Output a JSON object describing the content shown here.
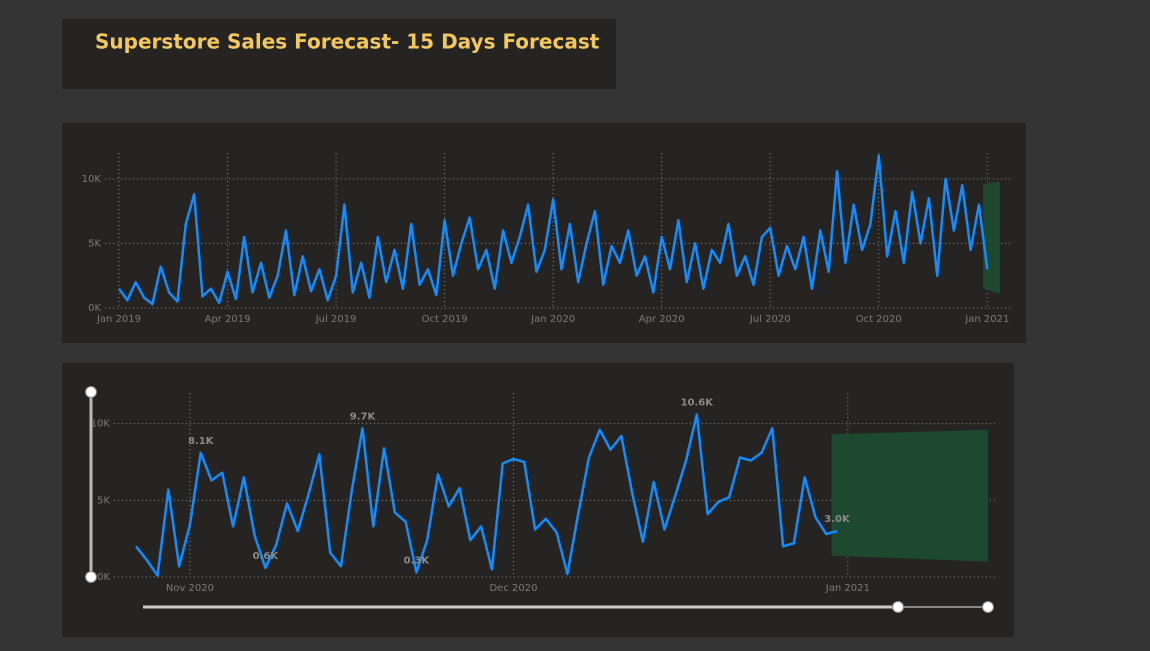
{
  "header": {
    "title": "Superstore Sales Forecast- 15 Days Forecast"
  },
  "chart_data": [
    {
      "type": "line",
      "color": "#118dff",
      "values": [
        1500,
        600,
        2000,
        800,
        300,
        3200,
        1200,
        500,
        6500,
        8800,
        900,
        1500,
        400,
        2800,
        700,
        5500,
        1200,
        3500,
        800,
        2500,
        6000,
        1000,
        4000,
        1300,
        3000,
        600,
        2500,
        8000,
        1200,
        3500,
        800,
        5500,
        2000,
        4500,
        1500,
        6500,
        1800,
        3000,
        1000,
        6800,
        2500,
        5000,
        7000,
        3000,
        4500,
        1500,
        6000,
        3500,
        5500,
        8000,
        2800,
        4500,
        8400,
        3000,
        6500,
        2000,
        5000,
        7500,
        1800,
        4800,
        3500,
        6000,
        2500,
        4000,
        1200,
        5500,
        3000,
        6800,
        2000,
        5000,
        1500,
        4500,
        3500,
        6500,
        2500,
        4000,
        1800,
        5500,
        6200,
        2500,
        4800,
        3000,
        5500,
        1500,
        6000,
        2800,
        10600,
        3500,
        8000,
        4500,
        6500,
        11800,
        4000,
        7500,
        3500,
        9000,
        5000,
        8500,
        2500,
        10000,
        6000,
        9500,
        4500,
        8000,
        3000
      ],
      "forecast": {
        "color": "#1d4a2e",
        "x": [
          103.5,
          105.5
        ],
        "upper": [
          9600,
          9800
        ],
        "lower": [
          1500,
          1100
        ]
      },
      "xlim": [
        0,
        106
      ],
      "ylim": [
        0,
        12000
      ],
      "xticks": [
        {
          "value": 0,
          "label": "Jan 2019"
        },
        {
          "value": 13,
          "label": "Apr 2019"
        },
        {
          "value": 26,
          "label": "Jul 2019"
        },
        {
          "value": 39,
          "label": "Oct 2019"
        },
        {
          "value": 52,
          "label": "Jan 2020"
        },
        {
          "value": 65,
          "label": "Apr 2020"
        },
        {
          "value": 78,
          "label": "Jul 2020"
        },
        {
          "value": 91,
          "label": "Oct 2020"
        },
        {
          "value": 104,
          "label": "Jan 2021"
        }
      ],
      "yticks": [
        {
          "value": 0,
          "label": "0K"
        },
        {
          "value": 5000,
          "label": "5K"
        },
        {
          "value": 10000,
          "label": "10K"
        }
      ],
      "grid": true
    },
    {
      "type": "line",
      "color": "#118dff",
      "x": [
        -5,
        -4,
        -3,
        -2,
        -1,
        0,
        1,
        2,
        3,
        4,
        5,
        6,
        7,
        8,
        9,
        10,
        11,
        12,
        13,
        14,
        15,
        16,
        17,
        18,
        19,
        20,
        21,
        22,
        23,
        24,
        25,
        26,
        27,
        28,
        29,
        30,
        31,
        32,
        33,
        34,
        35,
        36,
        37,
        38,
        39,
        40,
        41,
        42,
        43,
        44,
        45,
        46,
        47,
        48,
        49,
        50,
        51,
        52,
        53,
        54,
        55,
        56,
        57,
        58,
        59,
        60
      ],
      "values": [
        2000,
        1100,
        100,
        5700,
        700,
        3400,
        8100,
        6300,
        6800,
        3300,
        6500,
        2700,
        600,
        2100,
        4800,
        3000,
        5400,
        8000,
        1600,
        700,
        5600,
        9700,
        3300,
        8400,
        4200,
        3600,
        300,
        2400,
        6700,
        4600,
        5800,
        2400,
        3300,
        500,
        7400,
        7700,
        7500,
        3100,
        3800,
        2900,
        200,
        4100,
        7800,
        9600,
        8300,
        9200,
        5500,
        2300,
        6200,
        3100,
        5300,
        7600,
        10600,
        4100,
        4900,
        5200,
        7800,
        7600,
        8100,
        9700,
        2000,
        2200,
        6500,
        3900,
        2800,
        3000
      ],
      "value_labels": [
        null,
        null,
        null,
        null,
        null,
        null,
        "8.1K",
        null,
        null,
        null,
        null,
        null,
        "0.6K",
        null,
        null,
        null,
        null,
        null,
        null,
        null,
        null,
        "9.7K",
        null,
        null,
        null,
        null,
        "0.3K",
        null,
        null,
        null,
        null,
        null,
        null,
        null,
        null,
        null,
        null,
        null,
        null,
        null,
        null,
        null,
        null,
        null,
        null,
        null,
        null,
        null,
        null,
        null,
        null,
        null,
        "10.6K",
        null,
        null,
        null,
        null,
        null,
        null,
        null,
        null,
        null,
        null,
        null,
        null,
        "3.0K"
      ],
      "forecast": {
        "color": "#1d4a2e",
        "x": [
          59.5,
          74
        ],
        "upper": [
          9300,
          9600
        ],
        "lower": [
          1400,
          1000
        ]
      },
      "xlim": [
        -5,
        74
      ],
      "ylim": [
        0,
        12000
      ],
      "xticks": [
        {
          "value": 0,
          "label": "Nov 2020"
        },
        {
          "value": 30,
          "label": "Dec 2020"
        },
        {
          "value": 61,
          "label": "Jan 2021"
        }
      ],
      "yticks": [
        {
          "value": 0,
          "label": "0K"
        },
        {
          "value": 5000,
          "label": "5K"
        },
        {
          "value": 10000,
          "label": "10K"
        }
      ],
      "grid": true
    }
  ]
}
